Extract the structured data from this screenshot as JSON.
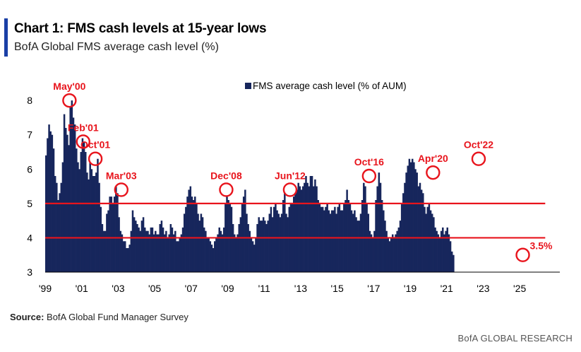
{
  "header": {
    "title": "Chart 1: FMS cash levels at 15-year lows",
    "subtitle": "BofA Global FMS average cash level (%)"
  },
  "footer": {
    "source_label": "Source:",
    "source_text": " BofA Global Fund Manager Survey",
    "brand": "BofA GLOBAL RESEARCH"
  },
  "chart_data": {
    "type": "bar",
    "series": [
      {
        "name": "FMS average cash level (% of AUM)",
        "color": "#17265c",
        "x_start": 1999.0,
        "x_step": 0.0833,
        "values": [
          6.4,
          6.9,
          7.3,
          7.1,
          7.0,
          6.6,
          5.8,
          5.6,
          5.1,
          5.3,
          5.6,
          6.2,
          7.6,
          7.2,
          7.0,
          6.7,
          7.8,
          8.0,
          7.5,
          7.3,
          6.6,
          6.2,
          6.0,
          6.5,
          6.9,
          6.8,
          6.5,
          5.9,
          5.7,
          6.2,
          6.0,
          5.8,
          5.8,
          5.9,
          6.3,
          5.6,
          4.9,
          4.4,
          4.2,
          4.2,
          4.7,
          4.8,
          5.2,
          5.2,
          5.0,
          5.2,
          5.5,
          5.3,
          4.6,
          4.2,
          4.1,
          3.9,
          3.9,
          3.7,
          3.7,
          3.8,
          4.2,
          4.8,
          4.6,
          4.5,
          4.4,
          4.3,
          4.2,
          4.5,
          4.6,
          4.3,
          4.2,
          4.2,
          4.1,
          4.3,
          4.3,
          4.1,
          4.2,
          4.1,
          4.1,
          4.4,
          4.5,
          4.3,
          4.1,
          4.2,
          4.0,
          4.1,
          4.4,
          4.3,
          4.1,
          4.2,
          3.9,
          3.9,
          4.0,
          4.1,
          4.3,
          4.7,
          4.9,
          5.2,
          5.4,
          5.5,
          5.2,
          5.1,
          5.2,
          5.0,
          4.7,
          4.5,
          4.7,
          4.6,
          4.3,
          4.2,
          4.0,
          4.0,
          3.9,
          3.8,
          3.7,
          3.9,
          4.0,
          4.1,
          4.3,
          4.2,
          4.1,
          4.3,
          5.0,
          5.2,
          5.1,
          5.0,
          4.9,
          4.4,
          4.1,
          4.0,
          4.1,
          4.4,
          4.6,
          5.0,
          5.2,
          5.4,
          4.7,
          4.4,
          4.2,
          4.0,
          3.9,
          3.8,
          4.0,
          4.4,
          4.6,
          4.5,
          4.5,
          4.6,
          4.5,
          4.4,
          4.5,
          4.7,
          4.9,
          4.6,
          4.9,
          5.0,
          4.8,
          4.7,
          4.6,
          4.7,
          5.1,
          5.3,
          4.7,
          4.6,
          4.9,
          5.0,
          5.0,
          5.2,
          5.3,
          5.4,
          5.6,
          5.5,
          5.4,
          5.5,
          5.6,
          5.8,
          5.6,
          5.5,
          5.8,
          5.8,
          5.5,
          5.7,
          5.5,
          5.1,
          5.0,
          4.9,
          4.9,
          4.8,
          4.9,
          5.0,
          4.8,
          4.7,
          4.8,
          4.8,
          4.9,
          4.7,
          4.9,
          5.0,
          4.8,
          4.8,
          5.0,
          5.1,
          5.4,
          5.1,
          5.0,
          4.8,
          4.7,
          4.8,
          4.6,
          4.5,
          4.5,
          4.7,
          5.1,
          5.6,
          5.5,
          5.0,
          4.7,
          4.2,
          4.1,
          4.0,
          4.2,
          5.1,
          5.5,
          5.9,
          5.6,
          5.1,
          4.8,
          4.5,
          4.2,
          4.0,
          3.9,
          4.0,
          4.1,
          4.0,
          4.1,
          4.2,
          4.3,
          4.5,
          5.0,
          5.3,
          5.6,
          5.9,
          6.1,
          6.3,
          6.2,
          6.3,
          6.2,
          6.0,
          5.9,
          5.5,
          5.6,
          5.4,
          5.3,
          4.9,
          4.7,
          4.9,
          5.0,
          4.8,
          4.7,
          4.6,
          4.3,
          4.2,
          4.1,
          4.0,
          4.2,
          4.3,
          4.1,
          4.2,
          4.3,
          4.1,
          3.9,
          3.6,
          3.5
        ],
        "annotations": [
          {
            "label": "May'00",
            "x": 2000.33,
            "y": 8.0
          },
          {
            "label": "Feb'01",
            "x": 2001.08,
            "y": 6.8
          },
          {
            "label": "Oct'01",
            "x": 2001.75,
            "y": 6.3
          },
          {
            "label": "Mar'03",
            "x": 2003.17,
            "y": 5.4
          },
          {
            "label": "Dec'08",
            "x": 2008.92,
            "y": 5.4
          },
          {
            "label": "Jun'12",
            "x": 2012.42,
            "y": 5.4
          },
          {
            "label": "Oct'16",
            "x": 2016.75,
            "y": 5.8
          },
          {
            "label": "Apr'20",
            "x": 2020.25,
            "y": 5.9
          },
          {
            "label": "Oct'22",
            "x": 2022.75,
            "y": 6.3
          },
          {
            "label": "3.5%",
            "x": 2025.17,
            "y": 3.5
          }
        ]
      }
    ],
    "reference_lines": [
      5.0,
      4.0
    ],
    "reference_color": "#e8141c",
    "xlim": [
      1999.0,
      2027.2
    ],
    "ylim": [
      3,
      8.6
    ],
    "yticks": [
      3,
      4,
      5,
      6,
      7,
      8
    ],
    "xticks": [
      {
        "label": "'99",
        "x": 1999.0
      },
      {
        "label": "'01",
        "x": 2001.0
      },
      {
        "label": "'03",
        "x": 2003.0
      },
      {
        "label": "'05",
        "x": 2005.0
      },
      {
        "label": "'07",
        "x": 2007.0
      },
      {
        "label": "'09",
        "x": 2009.0
      },
      {
        "label": "'11",
        "x": 2011.0
      },
      {
        "label": "'13",
        "x": 2013.0
      },
      {
        "label": "'15",
        "x": 2015.0
      },
      {
        "label": "'17",
        "x": 2017.0
      },
      {
        "label": "'19",
        "x": 2019.0
      },
      {
        "label": "'21",
        "x": 2021.0
      },
      {
        "label": "'23",
        "x": 2023.0
      },
      {
        "label": "'25",
        "x": 2025.0
      }
    ],
    "grid": false,
    "legend": "top-center"
  }
}
